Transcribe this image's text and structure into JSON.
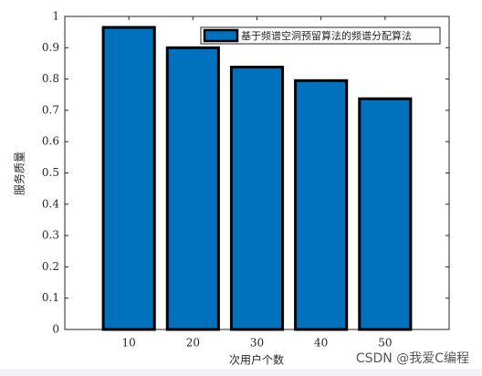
{
  "chart_data": {
    "type": "bar",
    "x": [
      10,
      20,
      30,
      40,
      50
    ],
    "xlim": [
      0,
      60
    ],
    "xticks": [
      10,
      20,
      30,
      40,
      50
    ],
    "ylim": [
      0,
      1
    ],
    "yticks": [
      0,
      0.1,
      0.2,
      0.3,
      0.4,
      0.5,
      0.6,
      0.7,
      0.8,
      0.9,
      1
    ],
    "xlabel": "次用户个数",
    "ylabel": "服务质量",
    "series": [
      {
        "name": "基于频谱空洞预留算法的频谱分配算法",
        "color": "#0072bd",
        "values": [
          0.965,
          0.9,
          0.838,
          0.795,
          0.737
        ]
      }
    ],
    "legend": "upper-right",
    "watermark": "CSDN @我爱C编程"
  }
}
